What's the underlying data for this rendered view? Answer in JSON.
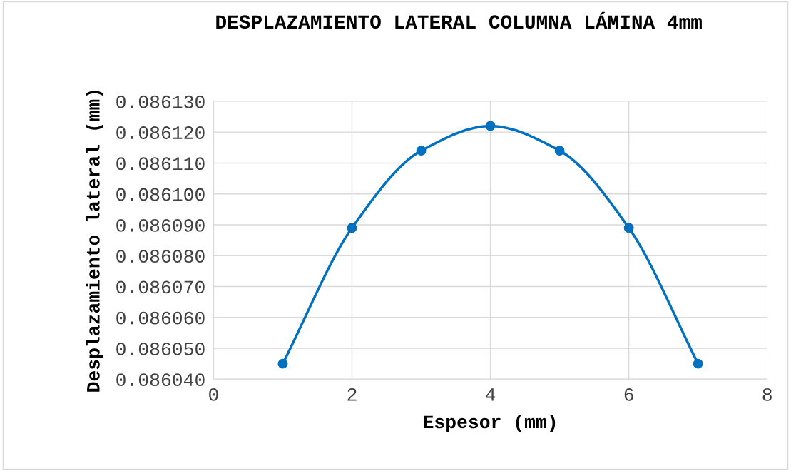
{
  "chart_data": {
    "type": "line",
    "title": "DESPLAZAMIENTO LATERAL COLUMNA LÁMINA 4mm",
    "xlabel": "Espesor (mm)",
    "ylabel": "Desplazamiento lateral (mm)",
    "x": [
      1,
      2,
      3,
      4,
      5,
      6,
      7
    ],
    "series": [
      {
        "color": "#0070c0",
        "values": [
          0.086045,
          0.086089,
          0.086114,
          0.086122,
          0.086114,
          0.086089,
          0.086045
        ]
      }
    ],
    "xlim": [
      0,
      8
    ],
    "xticks": [
      0,
      2,
      4,
      6,
      8
    ],
    "ylim": [
      0.08604,
      0.08613
    ],
    "yticks": [
      {
        "value": 0.08604,
        "label": "0.086040"
      },
      {
        "value": 0.08605,
        "label": "0.086050"
      },
      {
        "value": 0.08606,
        "label": "0.086060"
      },
      {
        "value": 0.08607,
        "label": "0.086070"
      },
      {
        "value": 0.08608,
        "label": "0.086080"
      },
      {
        "value": 0.08609,
        "label": "0.086090"
      },
      {
        "value": 0.0861,
        "label": "0.086100"
      },
      {
        "value": 0.08611,
        "label": "0.086110"
      },
      {
        "value": 0.08612,
        "label": "0.086120"
      },
      {
        "value": 0.08613,
        "label": "0.086130"
      }
    ],
    "grid": true,
    "marker": "circle",
    "line_style": "solid",
    "legend": false
  }
}
